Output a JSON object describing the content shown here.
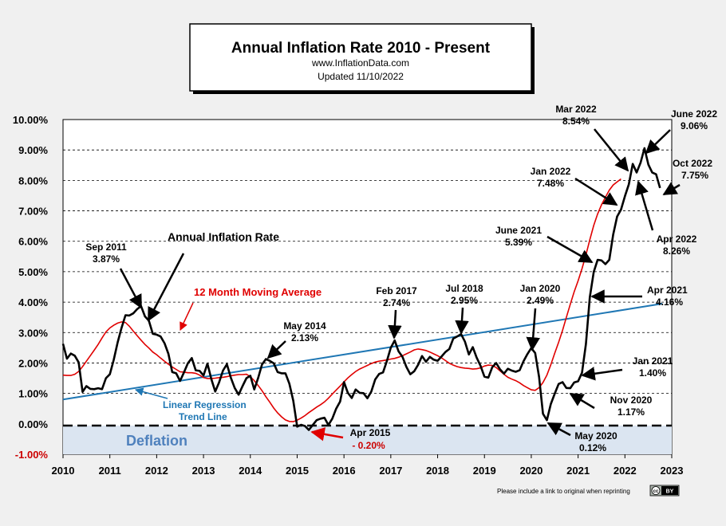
{
  "title_box": {
    "title": "Annual  Inflation  Rate 2010 - Present",
    "url": "www.InflationData.com",
    "updated": "Updated    11/10/2022"
  },
  "chart_data": {
    "type": "line",
    "xlim": [
      2010,
      2023
    ],
    "ylim": [
      -1,
      10
    ],
    "x_ticks": [
      "2010",
      "2011",
      "2012",
      "2013",
      "2014",
      "2015",
      "2016",
      "2017",
      "2018",
      "2019",
      "2020",
      "2021",
      "2022",
      "2023"
    ],
    "y_ticks": [
      "10.00%",
      "9.00%",
      "8.00%",
      "7.00%",
      "6.00%",
      "5.00%",
      "4.00%",
      "3.00%",
      "2.00%",
      "1.00%",
      "0.00%",
      "-1.00%"
    ],
    "grid": "horizontal dashed",
    "series": [
      {
        "name": "Annual Inflation Rate",
        "color": "#000000",
        "values": [
          2.63,
          2.14,
          2.31,
          2.24,
          2.02,
          1.05,
          1.24,
          1.15,
          1.14,
          1.17,
          1.14,
          1.5,
          1.63,
          2.11,
          2.68,
          3.16,
          3.57,
          3.56,
          3.63,
          3.77,
          3.87,
          3.53,
          3.39,
          2.96,
          2.93,
          2.87,
          2.65,
          2.3,
          1.7,
          1.66,
          1.41,
          1.69,
          1.99,
          2.16,
          1.76,
          1.74,
          1.59,
          1.98,
          1.47,
          1.06,
          1.36,
          1.75,
          1.96,
          1.52,
          1.18,
          0.96,
          1.24,
          1.5,
          1.58,
          1.13,
          1.51,
          1.95,
          2.13,
          2.07,
          1.99,
          1.7,
          1.66,
          1.66,
          1.32,
          0.76,
          -0.09,
          -0.03,
          -0.07,
          -0.2,
          -0.04,
          0.12,
          0.17,
          0.2,
          -0.04,
          0.17,
          0.5,
          0.73,
          1.37,
          1.02,
          0.85,
          1.13,
          1.02,
          1.01,
          0.84,
          1.06,
          1.46,
          1.64,
          1.69,
          2.07,
          2.5,
          2.74,
          2.38,
          2.2,
          1.87,
          1.63,
          1.73,
          1.94,
          2.23,
          2.04,
          2.2,
          2.11,
          2.07,
          2.21,
          2.36,
          2.46,
          2.8,
          2.87,
          2.95,
          2.7,
          2.28,
          2.52,
          2.18,
          1.91,
          1.55,
          1.52,
          1.86,
          2.0,
          1.79,
          1.65,
          1.81,
          1.75,
          1.71,
          1.76,
          2.05,
          2.29,
          2.49,
          2.33,
          1.54,
          0.33,
          0.12,
          0.65,
          0.99,
          1.31,
          1.37,
          1.18,
          1.17,
          1.36,
          1.4,
          1.68,
          2.62,
          4.16,
          4.99,
          5.39,
          5.37,
          5.25,
          5.39,
          6.22,
          6.81,
          7.04,
          7.48,
          7.87,
          8.54,
          8.26,
          8.58,
          9.06,
          8.52,
          8.26,
          8.2,
          7.75
        ]
      },
      {
        "name": "12 Month Moving Average",
        "color": "#e00000",
        "values": [
          1.6,
          1.59,
          1.59,
          1.63,
          1.72,
          1.88,
          2.06,
          2.24,
          2.42,
          2.61,
          2.82,
          3.02,
          3.15,
          3.24,
          3.31,
          3.35,
          3.33,
          3.21,
          3.05,
          2.9,
          2.75,
          2.61,
          2.49,
          2.36,
          2.27,
          2.16,
          2.06,
          1.96,
          1.87,
          1.79,
          1.71,
          1.7,
          1.68,
          1.68,
          1.66,
          1.6,
          1.52,
          1.49,
          1.49,
          1.5,
          1.52,
          1.53,
          1.55,
          1.58,
          1.6,
          1.62,
          1.62,
          1.63,
          1.55,
          1.42,
          1.26,
          1.09,
          0.89,
          0.71,
          0.52,
          0.36,
          0.23,
          0.13,
          0.08,
          0.07,
          0.12,
          0.19,
          0.27,
          0.37,
          0.46,
          0.55,
          0.63,
          0.72,
          0.84,
          0.98,
          1.11,
          1.24,
          1.38,
          1.51,
          1.62,
          1.72,
          1.8,
          1.86,
          1.92,
          1.98,
          2.03,
          2.06,
          2.08,
          2.1,
          2.13,
          2.15,
          2.19,
          2.24,
          2.3,
          2.36,
          2.43,
          2.46,
          2.44,
          2.41,
          2.36,
          2.3,
          2.24,
          2.17,
          2.08,
          1.99,
          1.93,
          1.88,
          1.85,
          1.83,
          1.82,
          1.8,
          1.81,
          1.84,
          1.9,
          1.93,
          1.92,
          1.85,
          1.74,
          1.63,
          1.53,
          1.47,
          1.42,
          1.35,
          1.26,
          1.19,
          1.12,
          1.1,
          1.19,
          1.36,
          1.6,
          1.94,
          2.32,
          2.68,
          3.07,
          3.5,
          3.93,
          4.34,
          4.7,
          5.1,
          5.55,
          6.05,
          6.52,
          6.9,
          7.2,
          7.45,
          7.68,
          7.85,
          7.95,
          8.05
        ]
      },
      {
        "name": "Linear Regression Trend Line",
        "color": "#1f77b4",
        "x": [
          2010,
          2022.8
        ],
        "values": [
          0.8,
          3.95
        ]
      }
    ]
  },
  "labels": {
    "annual_rate": "Annual Inflation Rate",
    "moving_avg": "12 Month Moving Average",
    "regression_line1": "Linear Regression",
    "regression_line2": "Trend Line",
    "deflation": "Deflation",
    "footer": "Please include a link to original when reprinting",
    "cc": "cc",
    "cc_badge": "BY",
    "sep2011_date": "Sep 2011",
    "sep2011_val": "3.87%",
    "may2014_date": "May 2014",
    "may2014_val": "2.13%",
    "apr2015_date": "Apr 2015",
    "apr2015_val": "- 0.20%",
    "feb2017_date": "Feb 2017",
    "feb2017_val": "2.74%",
    "jul2018_date": "Jul 2018",
    "jul2018_val": "2.95%",
    "jan2020_date": "Jan 2020",
    "jan2020_val": "2.49%",
    "may2020_date": "May 2020",
    "may2020_val": "0.12%",
    "nov2020_date": "Nov 2020",
    "nov2020_val": "1.17%",
    "jan2021_date": "Jan 2021",
    "jan2021_val": "1.40%",
    "apr2021_date": "Apr 2021",
    "apr2021_val": "4.16%",
    "jun2021_date": "June 2021",
    "jun2021_val": "5.39%",
    "jan2022_date": "Jan 2022",
    "jan2022_val": "7.48%",
    "mar2022_date": "Mar 2022",
    "mar2022_val": "8.54%",
    "jun2022_date": "June 2022",
    "jun2022_val": "9.06%",
    "oct2022_date": "Oct 2022",
    "oct2022_val": "7.75%",
    "apr2022_date": "Apr 2022",
    "apr2022_val": "8.26%"
  }
}
